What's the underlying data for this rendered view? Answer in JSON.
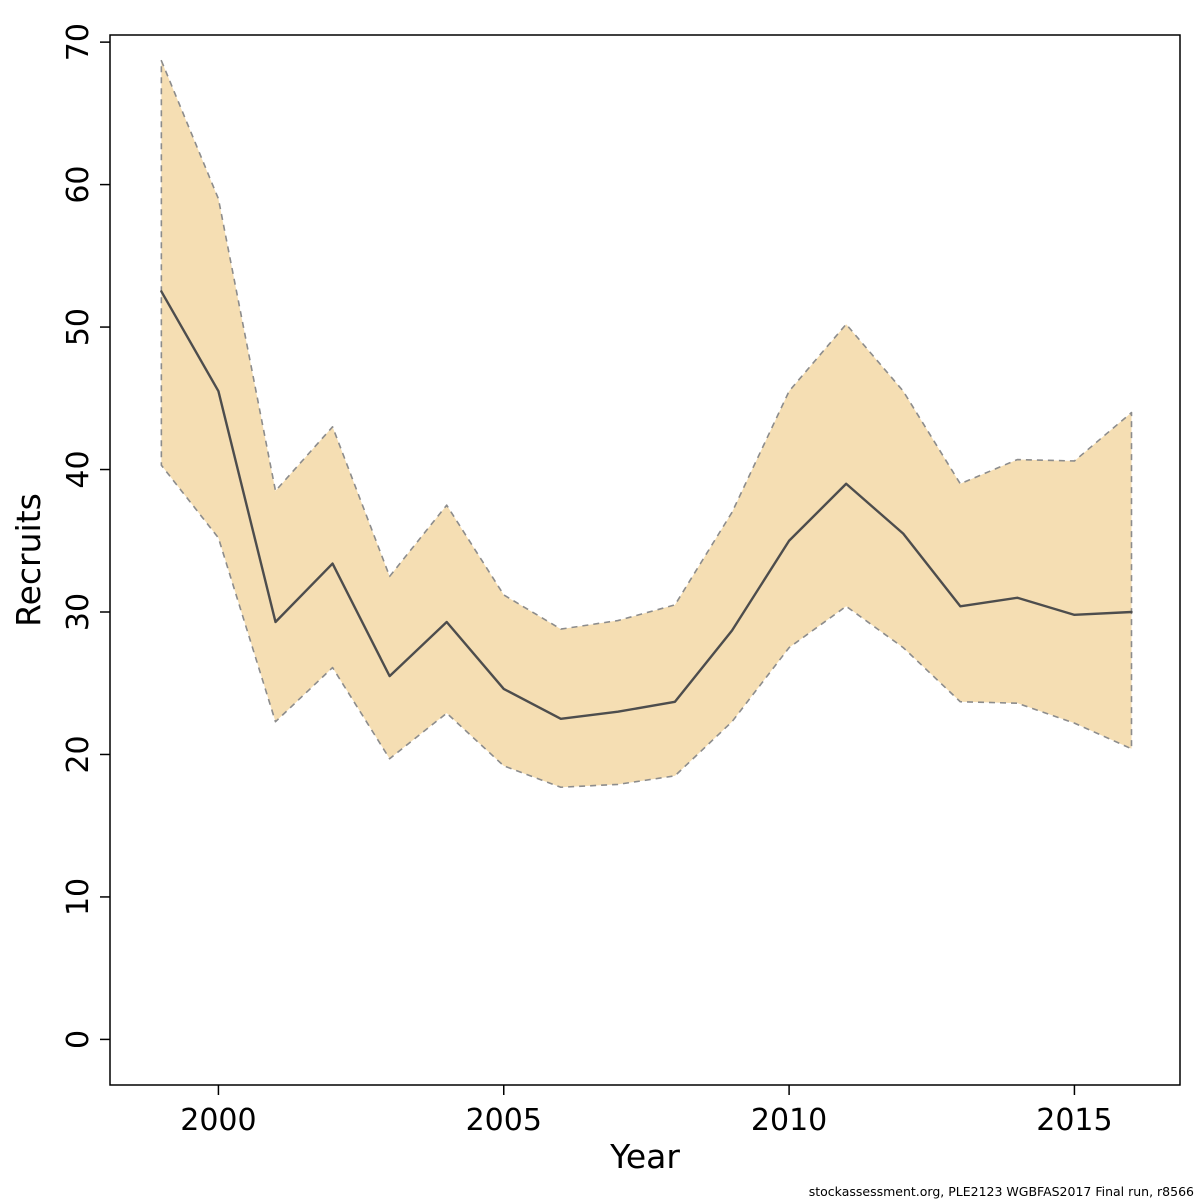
{
  "page": {
    "background": "#ffffff"
  },
  "footer": {
    "text": "stockassessment.org, PLE2123 WGBFAS2017 Final run, r8566"
  },
  "chart_data": {
    "type": "line",
    "title": "",
    "xlabel": "Year",
    "ylabel": "Recruits",
    "x": [
      1999,
      2000,
      2001,
      2002,
      2003,
      2004,
      2005,
      2006,
      2007,
      2008,
      2009,
      2010,
      2011,
      2012,
      2013,
      2014,
      2015,
      2016
    ],
    "series": [
      {
        "name": "estimate",
        "style": "solid",
        "color": "#4d4d4d",
        "values": [
          52.5,
          45.5,
          29.3,
          33.4,
          25.5,
          29.3,
          24.6,
          22.5,
          23.0,
          23.7,
          28.7,
          35.0,
          39.0,
          35.5,
          30.4,
          31.0,
          29.8,
          30.0
        ]
      },
      {
        "name": "upper-confidence-bound",
        "style": "dashed",
        "color": "#8c8c8c",
        "values": [
          68.7,
          59.0,
          38.5,
          43.0,
          32.5,
          37.5,
          31.2,
          28.8,
          29.4,
          30.5,
          37.0,
          45.5,
          50.2,
          45.5,
          39.0,
          40.7,
          40.6,
          44.0
        ]
      },
      {
        "name": "lower-confidence-bound",
        "style": "dashed",
        "color": "#8c8c8c",
        "values": [
          40.3,
          35.2,
          22.3,
          26.1,
          19.7,
          22.9,
          19.2,
          17.7,
          17.9,
          18.5,
          22.3,
          27.5,
          30.4,
          27.5,
          23.7,
          23.6,
          22.2,
          20.4
        ]
      }
    ],
    "band_fill": "#f5deb3",
    "band_border_color": "#8c8c8c",
    "x_ticks": [
      2000,
      2005,
      2010,
      2015
    ],
    "y_ticks": [
      0,
      10,
      20,
      30,
      40,
      50,
      60,
      70
    ],
    "xlim": [
      1998.1,
      2016.85
    ],
    "ylim": [
      -3.2,
      70.5
    ],
    "grid": false,
    "legend": "none"
  }
}
